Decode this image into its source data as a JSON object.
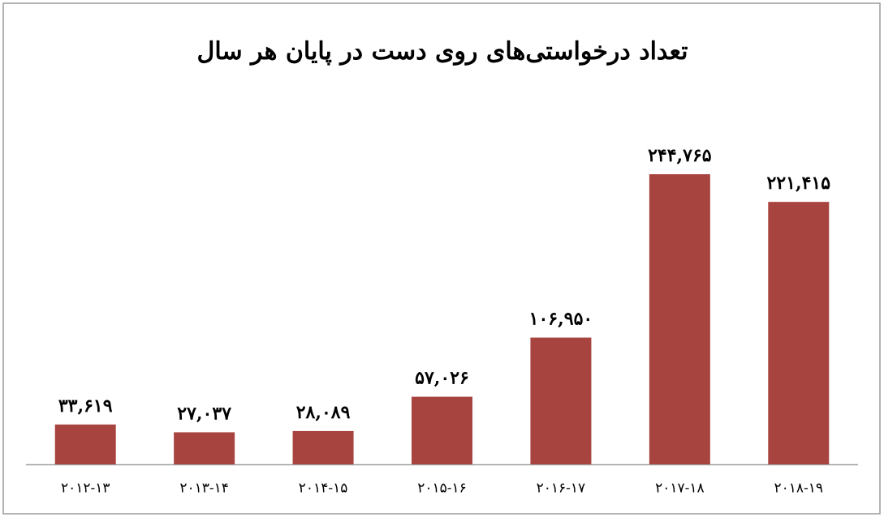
{
  "chart_data": {
    "type": "bar",
    "title": "تعداد درخواستی‌های روی دست در پایان هر سال",
    "categories": [
      "۲۰۱۲-۱۳",
      "۲۰۱۳-۱۴",
      "۲۰۱۴-۱۵",
      "۲۰۱۵-۱۶",
      "۲۰۱۶-۱۷",
      "۲۰۱۷-۱۸",
      "۲۰۱۸-۱۹"
    ],
    "values": [
      33619,
      27037,
      28089,
      57026,
      106950,
      244765,
      221415
    ],
    "value_labels": [
      "۳۳,۶۱۹",
      "۲۷,۰۳۷",
      "۲۸,۰۸۹",
      "۵۷,۰۲۶",
      "۱۰۶,۹۵۰",
      "۲۴۴,۷۶۵",
      "۲۲۱,۴۱۵"
    ],
    "color": "#a84440"
  }
}
